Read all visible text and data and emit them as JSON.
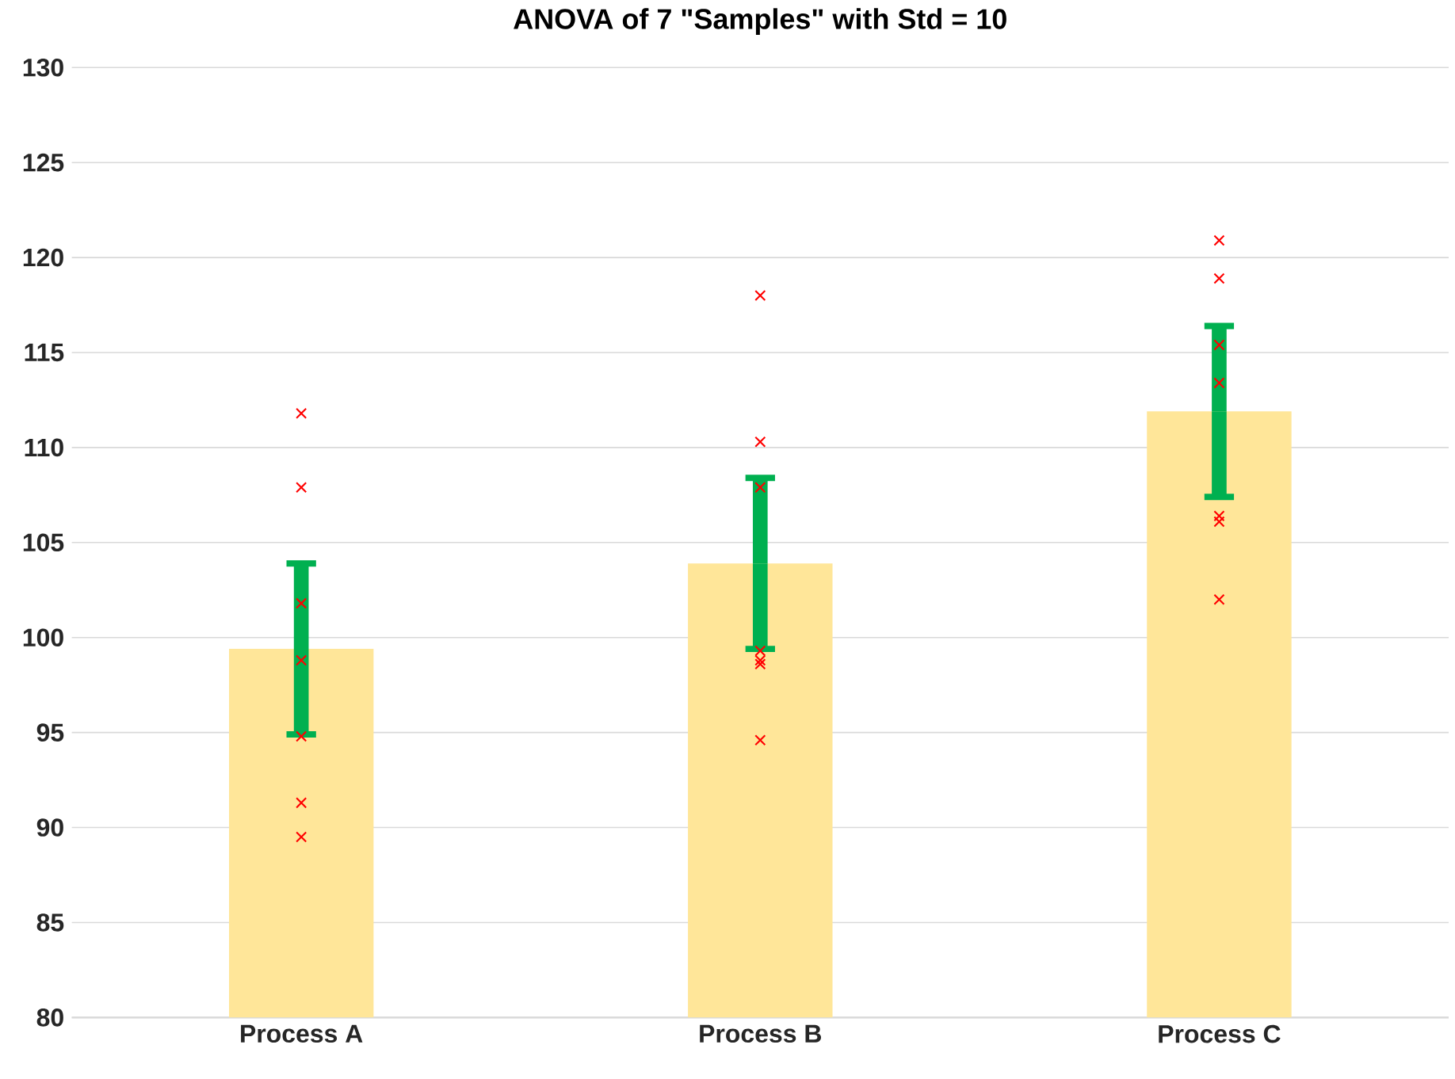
{
  "chart_data": {
    "type": "bar",
    "title": "ANOVA of 7 \"Samples\" with Std = 10",
    "categories": [
      "Process A",
      "Process B",
      "Process C"
    ],
    "series": [
      {
        "type": "bar",
        "color": "#ffe699",
        "values": [
          99.4,
          103.9,
          111.9
        ],
        "errors": [
          4.5,
          4.5,
          4.5
        ]
      },
      {
        "type": "scatter",
        "color": "#ff0000",
        "marker": "cross",
        "x": [
          "Process A",
          "Process A",
          "Process A",
          "Process A",
          "Process A",
          "Process A",
          "Process A",
          "Process B",
          "Process B",
          "Process B",
          "Process B",
          "Process B",
          "Process B",
          "Process B",
          "Process C",
          "Process C",
          "Process C",
          "Process C",
          "Process C",
          "Process C",
          "Process C"
        ],
        "values": [
          111.8,
          107.9,
          101.8,
          98.8,
          94.8,
          91.3,
          89.5,
          118.0,
          110.3,
          107.9,
          99.3,
          98.8,
          98.6,
          94.6,
          120.9,
          118.9,
          115.4,
          113.4,
          106.4,
          106.1,
          102.0
        ]
      }
    ],
    "ylim": [
      80,
      130
    ],
    "yticks": [
      80,
      85,
      90,
      95,
      100,
      105,
      110,
      115,
      120,
      125,
      130
    ],
    "grid": "y"
  }
}
